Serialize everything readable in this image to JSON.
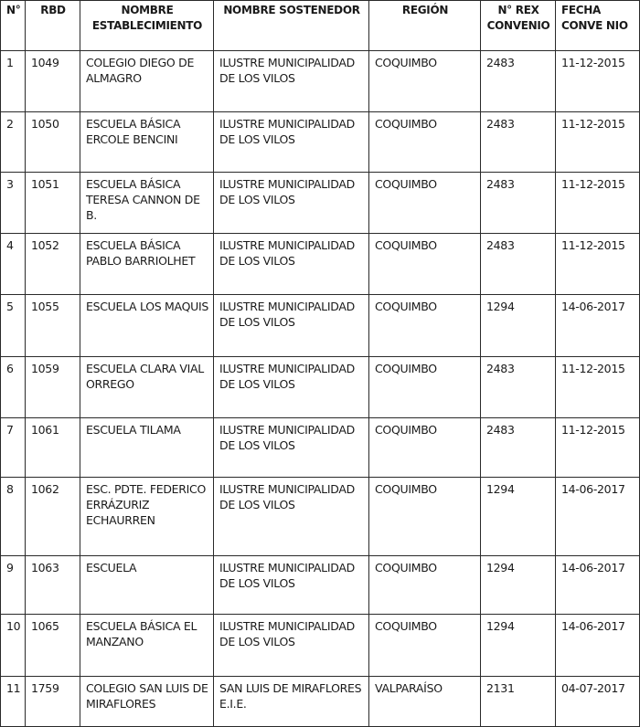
{
  "headers": [
    "N°",
    "RBD",
    "NOMBRE ESTABLECIMIENTO",
    "NOMBRE SOSTENEDOR",
    "REGIÓN",
    "N° REX CONVENIO",
    "FECHA CONVE NIO"
  ],
  "rows": [
    {
      "n": "1",
      "rbd": "1049",
      "establecimiento": "COLEGIO DIEGO DE ALMAGRO",
      "sostenedor": "ILUSTRE MUNICIPALIDAD DE LOS VILOS",
      "region": "COQUIMBO",
      "rex": "2483",
      "fecha": "11-12-2015"
    },
    {
      "n": "2",
      "rbd": "1050",
      "establecimiento": "ESCUELA BÁSICA ERCOLE BENCINI",
      "sostenedor": "ILUSTRE MUNICIPALIDAD DE LOS VILOS",
      "region": "COQUIMBO",
      "rex": "2483",
      "fecha": "11-12-2015"
    },
    {
      "n": "3",
      "rbd": "1051",
      "establecimiento": "ESCUELA BÁSICA TERESA CANNON DE B.",
      "sostenedor": "ILUSTRE MUNICIPALIDAD DE LOS VILOS",
      "region": "COQUIMBO",
      "rex": "2483",
      "fecha": "11-12-2015"
    },
    {
      "n": "4",
      "rbd": "1052",
      "establecimiento": "ESCUELA BÁSICA PABLO BARRIOLHET",
      "sostenedor": "ILUSTRE MUNICIPALIDAD DE LOS VILOS",
      "region": "COQUIMBO",
      "rex": "2483",
      "fecha": "11-12-2015"
    },
    {
      "n": "5",
      "rbd": "1055",
      "establecimiento": "ESCUELA LOS MAQUIS",
      "sostenedor": "ILUSTRE MUNICIPALIDAD DE LOS VILOS",
      "region": "COQUIMBO",
      "rex": "1294",
      "fecha": "14-06-2017"
    },
    {
      "n": "6",
      "rbd": "1059",
      "establecimiento": "ESCUELA CLARA VIAL ORREGO",
      "sostenedor": "ILUSTRE MUNICIPALIDAD DE LOS VILOS",
      "region": "COQUIMBO",
      "rex": "2483",
      "fecha": "11-12-2015"
    },
    {
      "n": "7",
      "rbd": "1061",
      "establecimiento": "ESCUELA TILAMA",
      "sostenedor": "ILUSTRE MUNICIPALIDAD DE LOS VILOS",
      "region": "COQUIMBO",
      "rex": "2483",
      "fecha": "11-12-2015"
    },
    {
      "n": "8",
      "rbd": "1062",
      "establecimiento": "ESC. PDTE. FEDERICO ERRÁZURIZ ECHAURREN",
      "sostenedor": "ILUSTRE MUNICIPALIDAD DE LOS VILOS",
      "region": "COQUIMBO",
      "rex": "1294",
      "fecha": "14-06-2017"
    },
    {
      "n": "9",
      "rbd": "1063",
      "establecimiento": "ESCUELA",
      "sostenedor": "ILUSTRE MUNICIPALIDAD DE LOS VILOS",
      "region": "COQUIMBO",
      "rex": "1294",
      "fecha": "14-06-2017"
    },
    {
      "n": "10",
      "rbd": "1065",
      "establecimiento": "ESCUELA BÁSICA EL MANZANO",
      "sostenedor": "ILUSTRE MUNICIPALIDAD DE LOS VILOS",
      "region": "COQUIMBO",
      "rex": "1294",
      "fecha": "14-06-2017"
    },
    {
      "n": "11",
      "rbd": "1759",
      "establecimiento": "COLEGIO SAN LUIS DE MIRAFLORES",
      "sostenedor": "SAN LUIS DE MIRAFLORES E.I.E.",
      "region": "VALPARAÍSO",
      "rex": "2131",
      "fecha": "04-07-2017"
    }
  ]
}
